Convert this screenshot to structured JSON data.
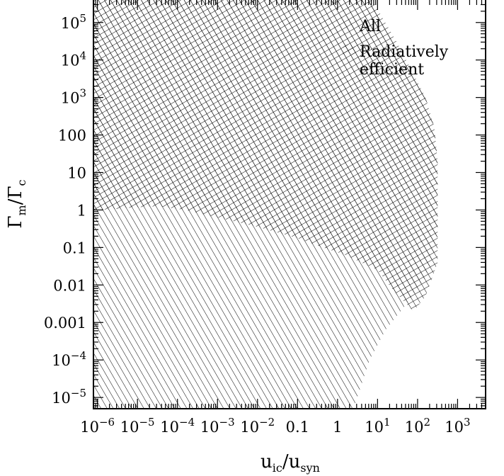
{
  "chart_data": {
    "type": "area",
    "xlabel": {
      "base": "u",
      "sub1": "ic",
      "sep": "/",
      "base2": "u",
      "sub2": "syn"
    },
    "ylabel": {
      "base": "Γ",
      "sub1": "m",
      "sep": "/",
      "base2": "Γ",
      "sub2": "c"
    },
    "x_scale": "log",
    "y_scale": "log",
    "xlim_log10": [
      -6.1,
      3.7
    ],
    "ylim_log10": [
      -5.3,
      5.6
    ],
    "x_ticks": [
      {
        "v": -6,
        "base": "10",
        "exp": "−6"
      },
      {
        "v": -5,
        "base": "10",
        "exp": "−5"
      },
      {
        "v": -4,
        "base": "10",
        "exp": "−4"
      },
      {
        "v": -3,
        "base": "10",
        "exp": "−3"
      },
      {
        "v": -2,
        "base": "10",
        "exp": "−2"
      },
      {
        "v": -1,
        "text": "0.1"
      },
      {
        "v": 0,
        "text": "1"
      },
      {
        "v": 1,
        "base": "10",
        "exp": "1"
      },
      {
        "v": 2,
        "base": "10",
        "exp": "2"
      },
      {
        "v": 3,
        "base": "10",
        "exp": "3"
      }
    ],
    "y_ticks": [
      {
        "v": -5,
        "base": "10",
        "exp": "−5"
      },
      {
        "v": -4,
        "base": "10",
        "exp": "−4"
      },
      {
        "v": -3,
        "text": "0.001"
      },
      {
        "v": -2,
        "text": "0.01"
      },
      {
        "v": -1,
        "text": "0.1"
      },
      {
        "v": 0,
        "text": "1"
      },
      {
        "v": 1,
        "text": "10"
      },
      {
        "v": 2,
        "text": "100"
      },
      {
        "v": 3,
        "base": "10",
        "exp": "3"
      },
      {
        "v": 4,
        "base": "10",
        "exp": "4"
      },
      {
        "v": 5,
        "base": "10",
        "exp": "5"
      }
    ],
    "series": [
      {
        "name": "All",
        "hatch": "diagonal",
        "x_log10": [
          -6.1,
          0.86,
          1.47,
          2.2,
          2.42,
          2.5,
          2.5,
          2.4,
          2.2,
          1.8,
          1.2,
          0.8,
          0.4,
          -6.1
        ],
        "y_log10": [
          5.6,
          5.6,
          4.5,
          3.0,
          2.2,
          1.3,
          -0.6,
          -1.2,
          -1.8,
          -2.4,
          -3.2,
          -4.0,
          -5.3,
          -5.3
        ]
      },
      {
        "name": "Radiatively efficient",
        "hatch": "crosshatch",
        "x_log10": [
          -6.1,
          0.86,
          1.47,
          2.2,
          2.42,
          2.5,
          2.5,
          2.2,
          1.9,
          1.4,
          1.0,
          0.2,
          -0.5,
          -1.0,
          -1.5,
          -2.0,
          -2.6,
          -3.2,
          -3.8,
          -4.5,
          -5.2,
          -5.6,
          -6.1
        ],
        "y_log10": [
          5.6,
          5.6,
          4.5,
          3.0,
          2.2,
          1.3,
          -1.4,
          -2.3,
          -2.7,
          -2.15,
          -1.6,
          -1.2,
          -0.95,
          -0.75,
          -0.6,
          -0.45,
          -0.3,
          -0.15,
          0.0,
          0.1,
          0.06,
          0.02,
          0.0
        ]
      }
    ],
    "legend": {
      "position": "top-right"
    }
  }
}
